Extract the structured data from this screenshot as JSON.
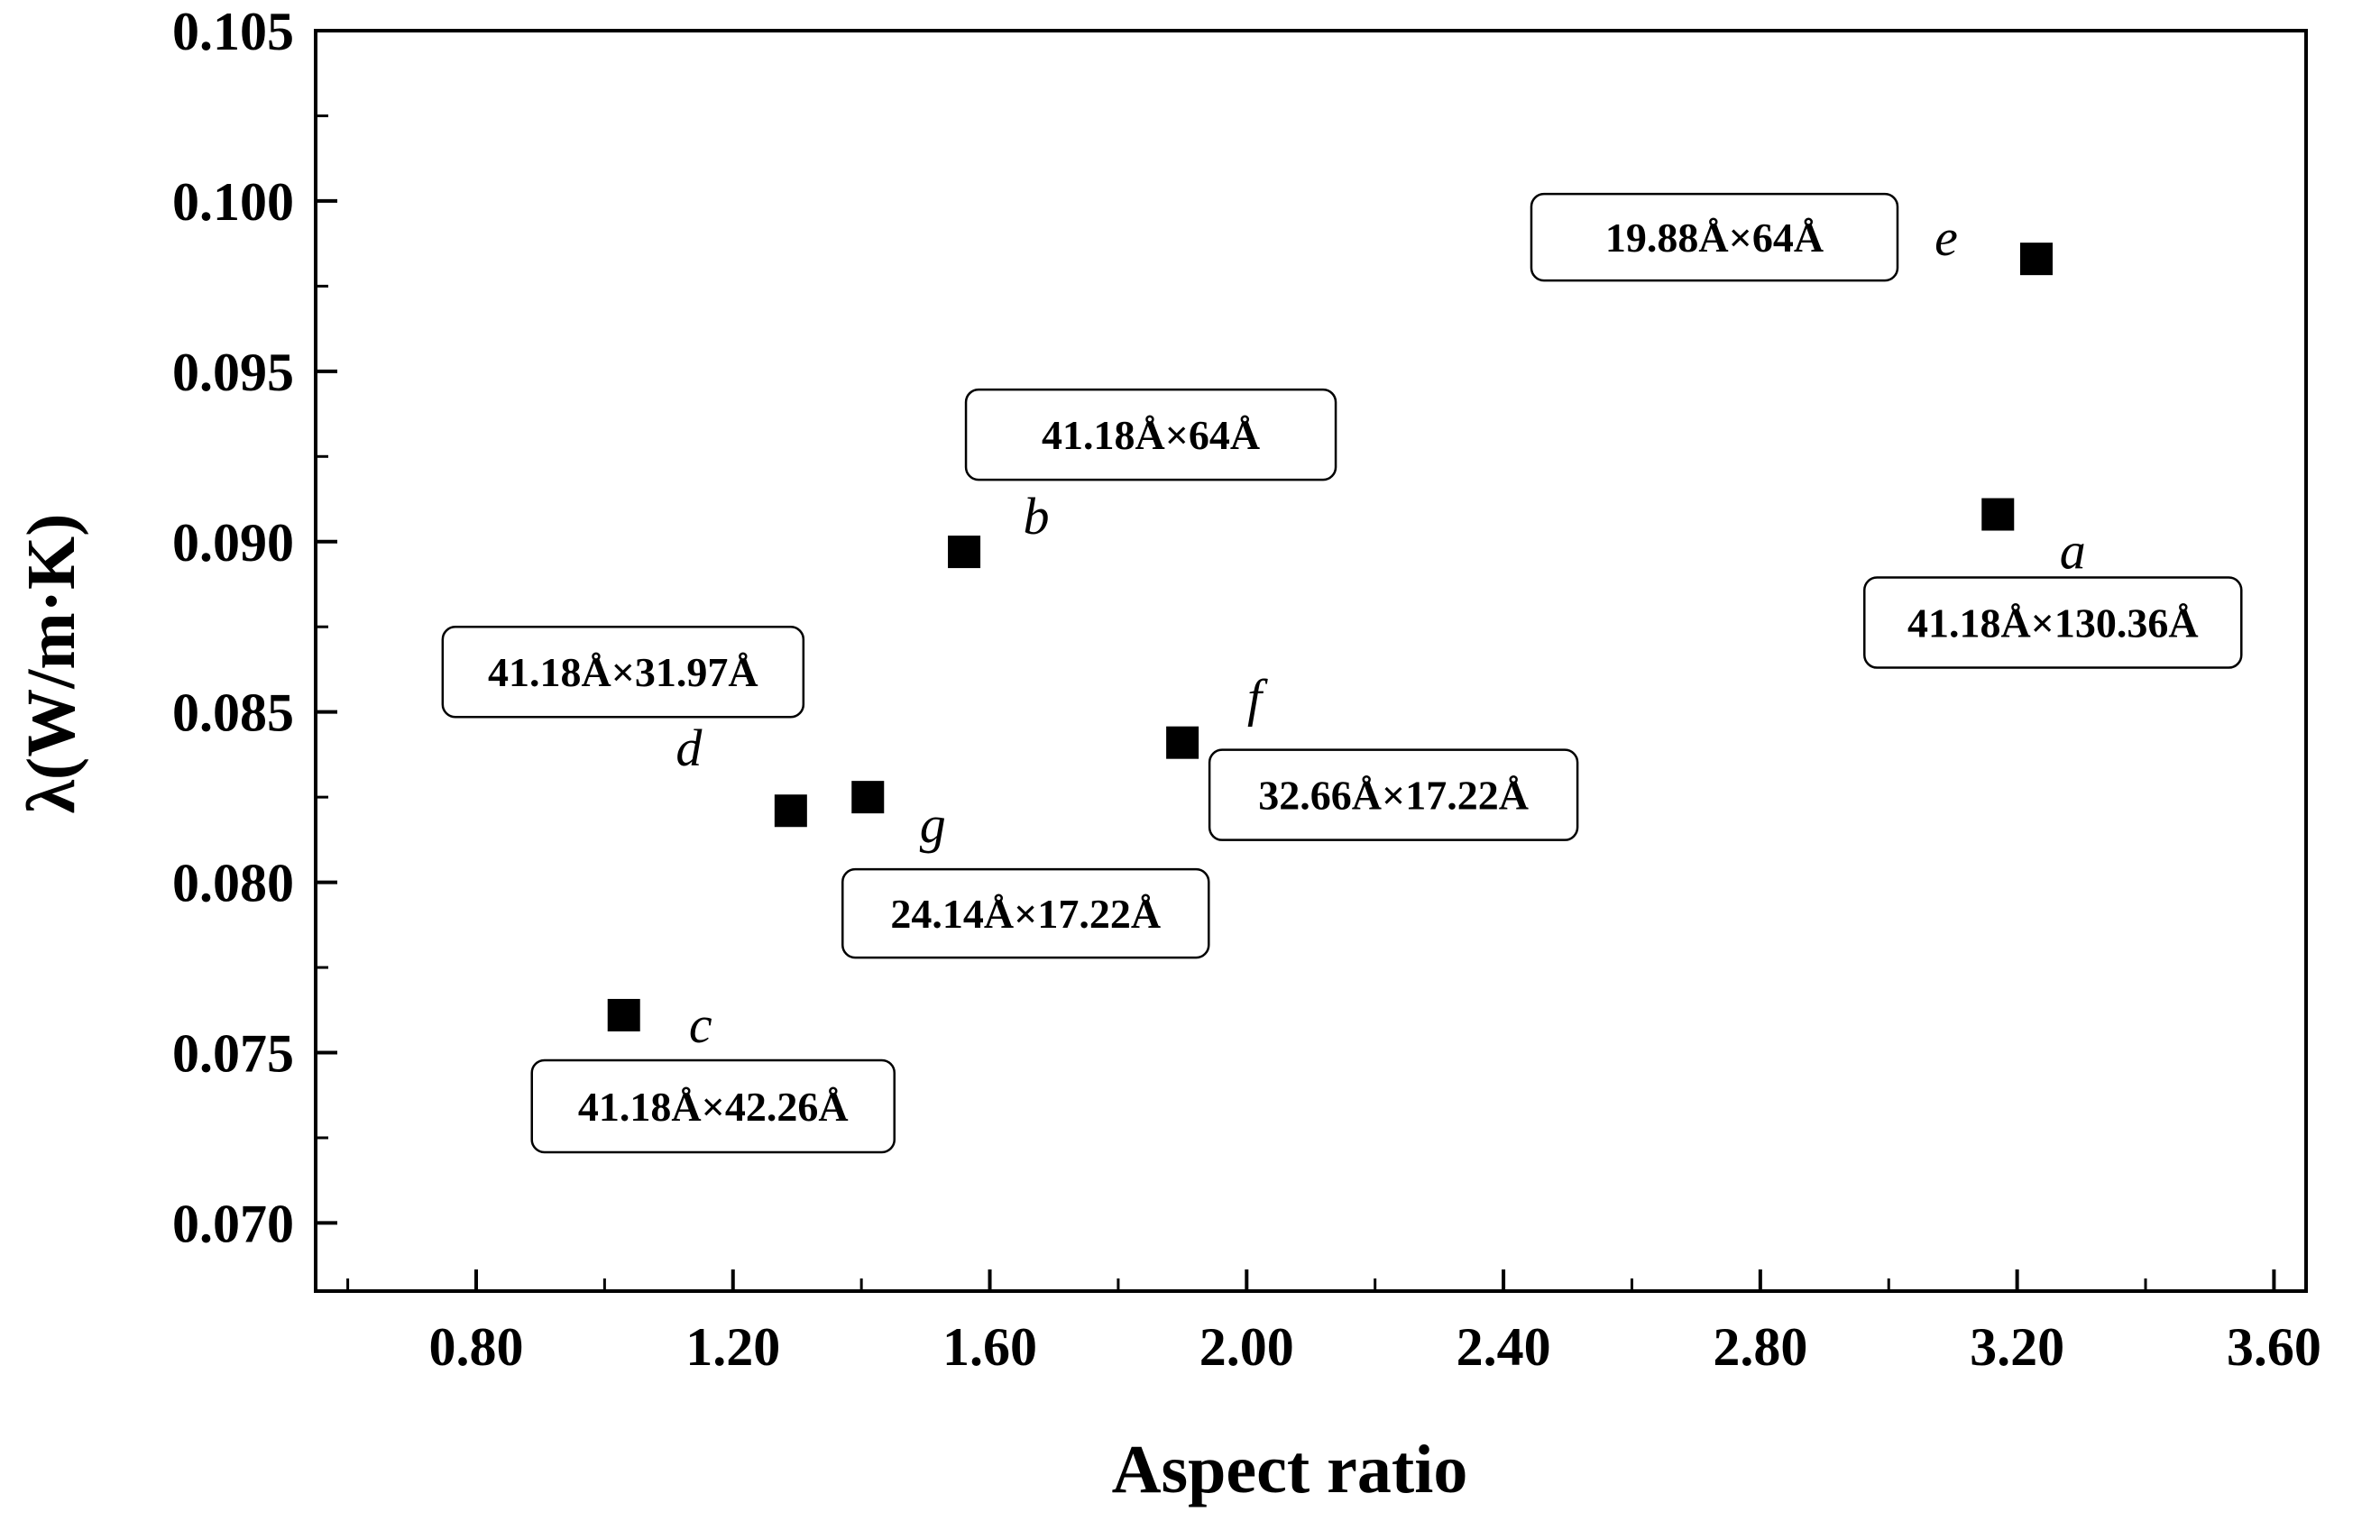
{
  "chart_data": {
    "type": "scatter",
    "xlabel": "Aspect ratio",
    "ylabel": "λ(W/m·K)",
    "xlim": [
      0.55,
      3.65
    ],
    "ylim": [
      0.068,
      0.105
    ],
    "x_ticks": [
      0.8,
      1.2,
      1.6,
      2.0,
      2.4,
      2.8,
      3.2,
      3.6
    ],
    "x_tick_labels": [
      "0.80",
      "1.20",
      "1.60",
      "2.00",
      "2.40",
      "2.80",
      "3.20",
      "3.60"
    ],
    "y_ticks": [
      0.07,
      0.075,
      0.08,
      0.085,
      0.09,
      0.095,
      0.1,
      0.105
    ],
    "y_tick_labels": [
      "0.070",
      "0.075",
      "0.080",
      "0.085",
      "0.090",
      "0.095",
      "0.100",
      "0.105"
    ],
    "marker": "square",
    "marker_color": "#000000",
    "grid": false,
    "points": [
      {
        "id": "a",
        "x": 3.17,
        "y": 0.0908,
        "label": "a",
        "annotation": "41.18Å×130.36Å"
      },
      {
        "id": "b",
        "x": 1.56,
        "y": 0.0897,
        "label": "b",
        "annotation": "41.18Å×64Å"
      },
      {
        "id": "c",
        "x": 1.03,
        "y": 0.0761,
        "label": "c",
        "annotation": "41.18Å×42.26Å"
      },
      {
        "id": "d",
        "x": 1.29,
        "y": 0.0821,
        "label": "d",
        "annotation": "41.18Å×31.97Å"
      },
      {
        "id": "e",
        "x": 3.23,
        "y": 0.0983,
        "label": "e",
        "annotation": "19.88Å×64Å"
      },
      {
        "id": "f",
        "x": 1.9,
        "y": 0.0841,
        "label": "f",
        "annotation": "32.66Å×17.22Å"
      },
      {
        "id": "g",
        "x": 1.41,
        "y": 0.0825,
        "label": "g",
        "annotation": "24.14Å×17.22Å"
      }
    ]
  }
}
